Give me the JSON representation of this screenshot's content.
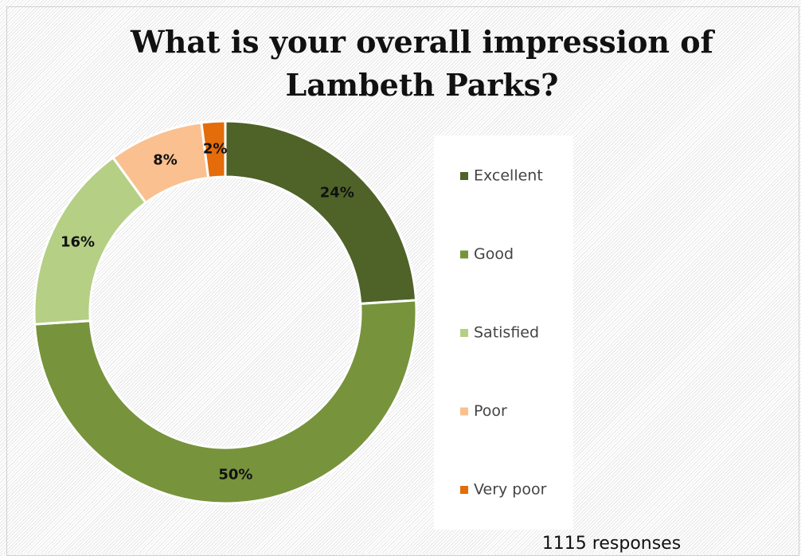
{
  "chart_data": {
    "type": "donut",
    "title": "What is your overall impression of Lambeth Parks?",
    "categories": [
      "Excellent",
      "Good",
      "Satisfied",
      "Poor",
      "Very poor"
    ],
    "values": [
      24,
      50,
      16,
      8,
      2
    ],
    "value_labels": [
      "24%",
      "50%",
      "16%",
      "8%",
      "2%"
    ],
    "colors": [
      "#4f6228",
      "#77933c",
      "#b5cf85",
      "#fac090",
      "#e46c0a"
    ],
    "legend": "right",
    "annotation": "1115 responses"
  }
}
